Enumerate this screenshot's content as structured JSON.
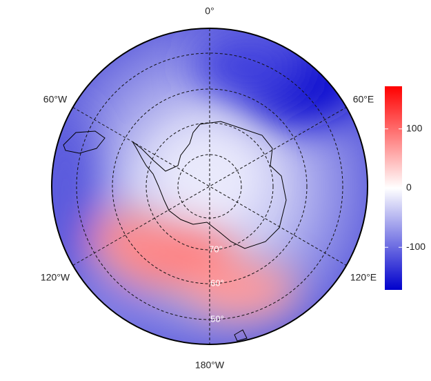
{
  "map": {
    "meridian_labels": [
      "0°",
      "60°E",
      "120°E",
      "180°W",
      "120°W",
      "60°W"
    ],
    "parallel_labels": [
      "70°",
      "60°",
      "50°"
    ],
    "colorbar": {
      "colors": [
        "#0000cc",
        "#ffffff",
        "#ff0000"
      ],
      "ylim": [
        -172,
        172
      ],
      "yticks": [
        -100,
        0,
        100
      ]
    }
  }
}
